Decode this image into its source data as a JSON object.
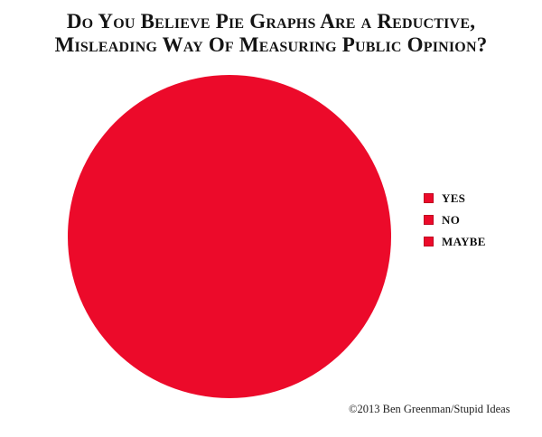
{
  "title": {
    "line1": "Do You Believe Pie Graphs Are a Reductive,",
    "line2": "Misleading Way Of Measuring Public Opinion?"
  },
  "legend": {
    "items": [
      {
        "label": "YES",
        "color": "#ec0a2a"
      },
      {
        "label": "NO",
        "color": "#ec0a2a"
      },
      {
        "label": "MAYBE",
        "color": "#ec0a2a"
      }
    ]
  },
  "credit": "©2013 Ben Greenman/Stupid Ideas",
  "colors": {
    "pie_red": "#ec0a2a",
    "title_text": "#141414",
    "background": "#ffffff"
  },
  "chart_data": {
    "type": "pie",
    "title": "Do You Believe Pie Graphs Are a Reductive, Misleading Way Of Measuring Public Opinion?",
    "pie_color": "#ec0a2a",
    "slices": [
      {
        "label": "YES",
        "color": "#ec0a2a"
      },
      {
        "label": "NO",
        "color": "#ec0a2a"
      },
      {
        "label": "MAYBE",
        "color": "#ec0a2a"
      }
    ],
    "appearance": "entire pie renders as one solid red circle because all legend slices share the identical red color; no slice boundaries, no percentage labels, no axes",
    "legend_position": "right",
    "legend_entries": [
      "YES",
      "NO",
      "MAYBE"
    ],
    "credit": "©2013 Ben Greenman/Stupid Ideas"
  }
}
